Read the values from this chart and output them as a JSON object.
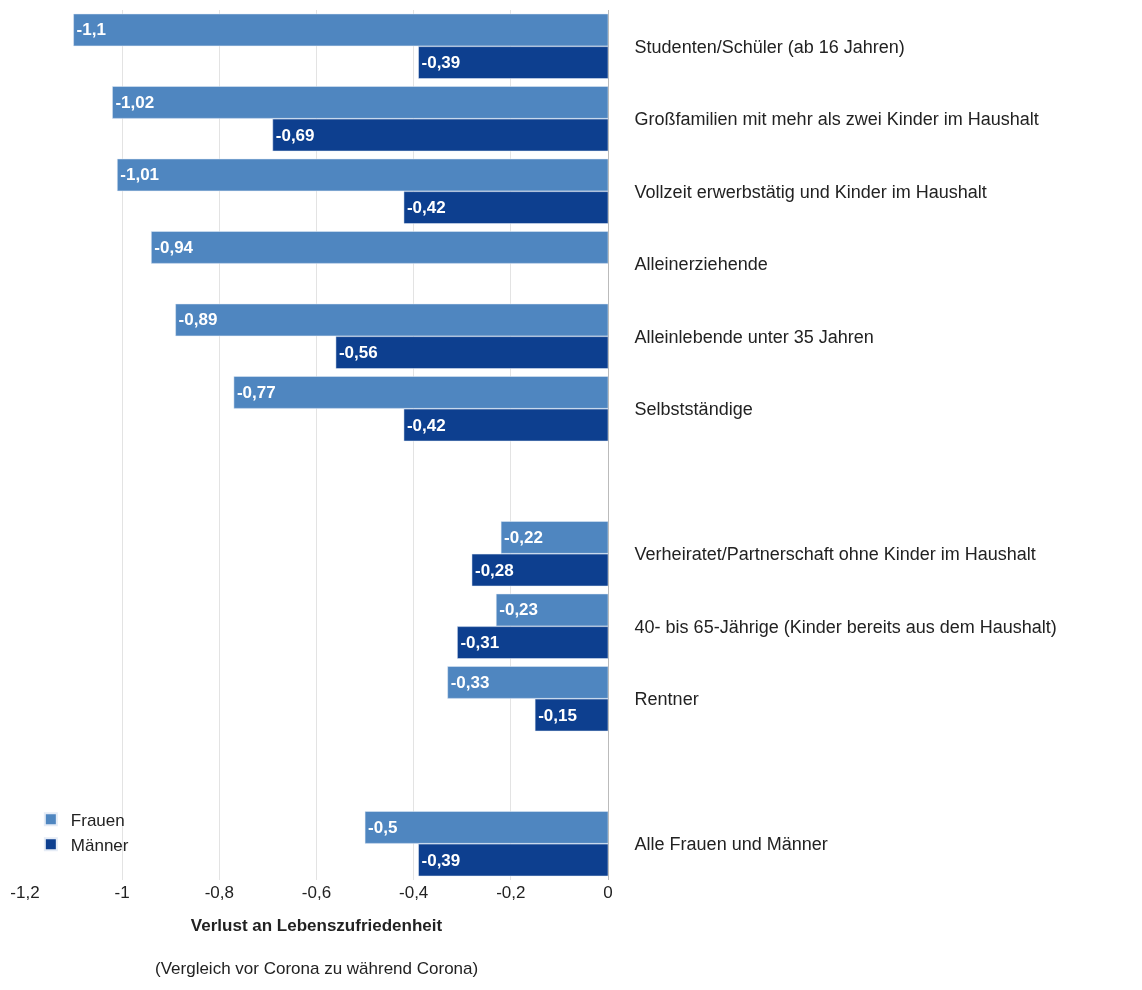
{
  "chart_data": {
    "type": "bar",
    "orientation": "horizontal",
    "categories": [
      "Studenten/Schüler (ab 16 Jahren)",
      "Großfamilien mit mehr als zwei Kinder im Haushalt",
      "Vollzeit erwerbstätig und Kinder im Haushalt",
      "Alleinerziehende",
      "Alleinlebende unter 35 Jahren",
      "Selbstständige",
      null,
      "Verheiratet/Partnerschaft ohne Kinder im Haushalt",
      "40- bis 65-Jährige (Kinder bereits aus dem Haushalt)",
      "Rentner",
      null,
      "Alle Frauen und Männer"
    ],
    "series": [
      {
        "name": "Frauen",
        "color": "#4f86c0",
        "values": [
          -1.1,
          -1.02,
          -1.01,
          -0.94,
          -0.89,
          -0.77,
          null,
          -0.22,
          -0.23,
          -0.33,
          null,
          -0.5
        ],
        "value_labels": [
          "-1,1",
          "-1,02",
          "-1,01",
          "-0,94",
          "-0,89",
          "-0,77",
          null,
          "-0,22",
          "-0,23",
          "-0,33",
          null,
          "-0,5"
        ]
      },
      {
        "name": "Männer",
        "color": "#0d3f8f",
        "values": [
          -0.39,
          -0.69,
          -0.42,
          null,
          -0.56,
          -0.42,
          null,
          -0.28,
          -0.31,
          -0.15,
          null,
          -0.39
        ],
        "value_labels": [
          "-0,39",
          "-0,69",
          "-0,42",
          null,
          "-0,56",
          "-0,42",
          null,
          "-0,28",
          "-0,31",
          "-0,15",
          null,
          "-0,39"
        ]
      }
    ],
    "xlim": [
      -1.2,
      0
    ],
    "xticks": [
      {
        "value": -1.2,
        "label": "-1,2"
      },
      {
        "value": -1,
        "label": "-1"
      },
      {
        "value": -0.8,
        "label": "-0,8"
      },
      {
        "value": -0.6,
        "label": "-0,6"
      },
      {
        "value": -0.4,
        "label": "-0,4"
      },
      {
        "value": -0.2,
        "label": "-0,2"
      },
      0
    ],
    "xlabel": "Verlust an Lebenszufriedenheit",
    "annotations": [
      "(Vergleich vor Corona zu während Corona)"
    ],
    "grid": "x",
    "legend": "bottom left"
  }
}
